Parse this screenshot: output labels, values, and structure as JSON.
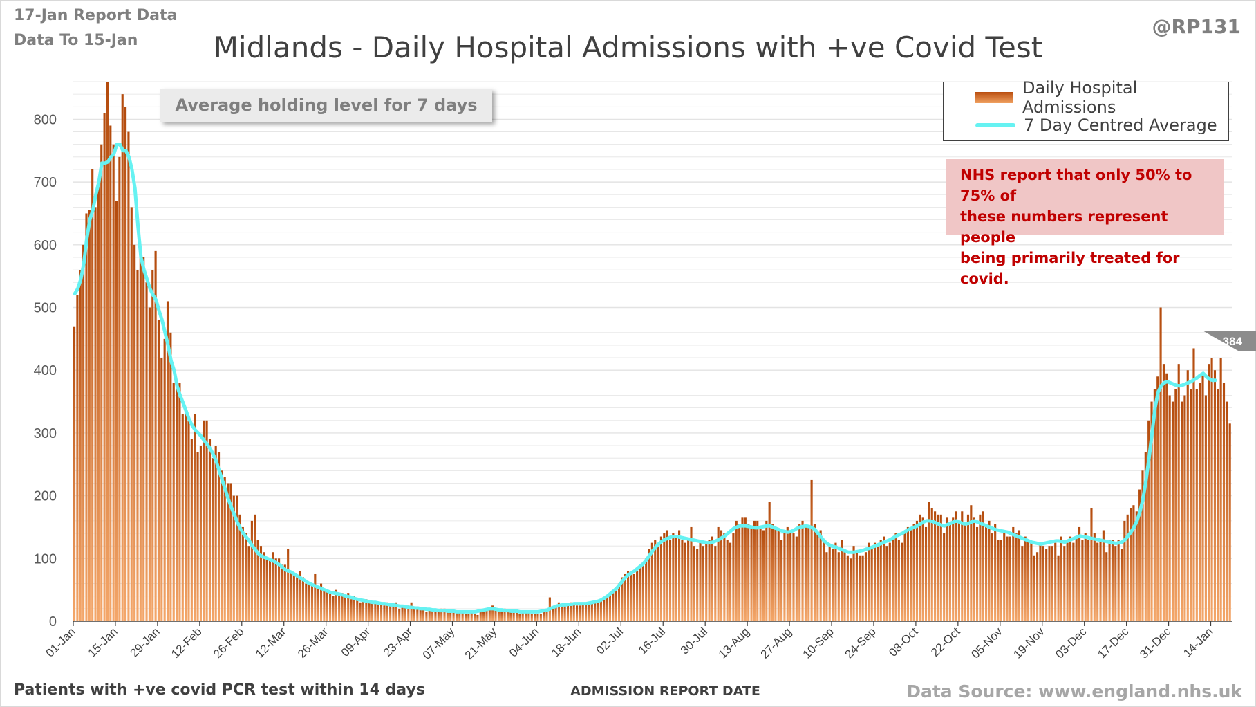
{
  "header": {
    "report_date": "17-Jan Report Data",
    "data_to": "Data To 15-Jan",
    "handle": "@RP131"
  },
  "annotations": {
    "holding": "Average holding level for 7 days",
    "nhs_note": [
      "NHS report that only 50% to 75% of",
      "these numbers represent people",
      "being primarily treated for covid."
    ],
    "callout_value": "384"
  },
  "footer": {
    "left": "Patients with +ve covid PCR test within 14 days",
    "source": "Data Source: www.england.nhs.uk"
  },
  "colors": {
    "bar_dark": "#b34a0c",
    "bar_light": "#f4a76a",
    "avg_line": "#66f2f2",
    "grid": "#e3e3e3",
    "note_bg": "#f0c6c6",
    "note_text": "#c00000"
  },
  "chart_data": {
    "type": "bar",
    "title": "Midlands - Daily Hospital Admissions with +ve Covid Test",
    "xlabel": "ADMISSION REPORT DATE",
    "ylabel": "",
    "ylim": [
      0,
      860
    ],
    "yticks": [
      0,
      100,
      200,
      300,
      400,
      500,
      600,
      700,
      800
    ],
    "grid": true,
    "legend_position": "top-right",
    "x_start": "01-Jan",
    "x_end": "15-Jan",
    "xticks": [
      "01-Jan",
      "15-Jan",
      "29-Jan",
      "12-Feb",
      "26-Feb",
      "12-Mar",
      "26-Mar",
      "09-Apr",
      "23-Apr",
      "07-May",
      "21-May",
      "04-Jun",
      "18-Jun",
      "02-Jul",
      "16-Jul",
      "30-Jul",
      "13-Aug",
      "27-Aug",
      "10-Sep",
      "24-Sep",
      "08-Oct",
      "22-Oct",
      "05-Nov",
      "19-Nov",
      "03-Dec",
      "17-Dec",
      "31-Dec",
      "14-Jan"
    ],
    "series": [
      {
        "name": "Daily Hospital Admissions",
        "values": [
          470,
          520,
          560,
          600,
          650,
          655,
          720,
          660,
          700,
          760,
          810,
          860,
          790,
          760,
          670,
          740,
          840,
          820,
          780,
          660,
          600,
          560,
          590,
          580,
          540,
          500,
          560,
          590,
          480,
          420,
          450,
          510,
          460,
          380,
          370,
          380,
          330,
          340,
          320,
          290,
          330,
          270,
          280,
          320,
          320,
          290,
          260,
          280,
          270,
          240,
          230,
          220,
          220,
          200,
          200,
          170,
          150,
          140,
          120,
          160,
          170,
          130,
          120,
          110,
          100,
          100,
          110,
          100,
          100,
          90,
          90,
          115,
          80,
          75,
          70,
          80,
          70,
          60,
          60,
          60,
          75,
          55,
          60,
          50,
          50,
          45,
          40,
          50,
          45,
          45,
          40,
          45,
          35,
          40,
          35,
          30,
          35,
          35,
          30,
          30,
          30,
          28,
          30,
          25,
          30,
          25,
          25,
          30,
          20,
          22,
          25,
          25,
          30,
          20,
          20,
          18,
          20,
          15,
          18,
          20,
          15,
          15,
          20,
          20,
          18,
          15,
          15,
          15,
          15,
          15,
          12,
          12,
          15,
          12,
          10,
          15,
          15,
          18,
          20,
          25,
          20,
          18,
          15,
          20,
          18,
          15,
          15,
          15,
          12,
          15,
          15,
          15,
          12,
          12,
          12,
          12,
          15,
          20,
          38,
          20,
          25,
          30,
          25,
          25,
          25,
          30,
          28,
          25,
          25,
          30,
          30,
          30,
          28,
          30,
          32,
          35,
          35,
          40,
          45,
          45,
          50,
          60,
          70,
          75,
          80,
          78,
          75,
          80,
          90,
          90,
          100,
          115,
          125,
          130,
          120,
          135,
          140,
          145,
          130,
          140,
          135,
          145,
          130,
          125,
          130,
          150,
          120,
          115,
          125,
          120,
          125,
          130,
          135,
          120,
          150,
          145,
          140,
          130,
          125,
          140,
          160,
          155,
          165,
          165,
          155,
          150,
          160,
          160,
          150,
          145,
          160,
          190,
          155,
          150,
          145,
          130,
          140,
          150,
          145,
          140,
          135,
          155,
          160,
          150,
          150,
          225,
          155,
          140,
          145,
          130,
          110,
          120,
          115,
          125,
          110,
          130,
          115,
          105,
          100,
          120,
          110,
          105,
          105,
          110,
          125,
          115,
          125,
          120,
          130,
          135,
          120,
          125,
          135,
          140,
          130,
          125,
          140,
          150,
          145,
          155,
          160,
          170,
          165,
          150,
          190,
          180,
          175,
          170,
          170,
          140,
          165,
          155,
          165,
          175,
          160,
          175,
          155,
          170,
          185,
          165,
          150,
          170,
          175,
          150,
          160,
          140,
          155,
          130,
          130,
          145,
          135,
          135,
          150,
          140,
          145,
          120,
          135,
          130,
          125,
          105,
          110,
          125,
          120,
          115,
          120,
          120,
          125,
          105,
          135,
          120,
          125,
          135,
          125,
          135,
          150,
          130,
          140,
          130,
          180,
          140,
          125,
          130,
          145,
          110,
          130,
          130,
          120,
          130,
          115,
          160,
          170,
          180,
          185,
          175,
          210,
          240,
          270,
          320,
          350,
          370,
          390,
          500,
          410,
          395,
          360,
          350,
          370,
          410,
          350,
          360,
          400,
          370,
          435,
          370,
          380,
          395,
          360,
          410,
          420,
          400,
          370,
          420,
          380,
          350,
          315
        ]
      },
      {
        "name": "7 Day Centred Average",
        "values": [
          522,
          530,
          545,
          570,
          610,
          640,
          655,
          680,
          700,
          730,
          730,
          732,
          740,
          745,
          760,
          760,
          750,
          750,
          740,
          720,
          690,
          630,
          580,
          560,
          545,
          530,
          520,
          512,
          495,
          480,
          460,
          440,
          415,
          400,
          375,
          360,
          348,
          335,
          322,
          312,
          305,
          300,
          295,
          288,
          282,
          275,
          266,
          255,
          240,
          225,
          210,
          195,
          182,
          170,
          158,
          148,
          140,
          134,
          128,
          120,
          114,
          108,
          104,
          102,
          100,
          98,
          96,
          93,
          90,
          86,
          82,
          80,
          78,
          75,
          72,
          69,
          66,
          63,
          60,
          58,
          56,
          54,
          52,
          50,
          48,
          46,
          45,
          44,
          43,
          42,
          40,
          39,
          38,
          36,
          35,
          34,
          33,
          32,
          31,
          30,
          30,
          29,
          28,
          28,
          27,
          26,
          26,
          25,
          24,
          24,
          23,
          22,
          22,
          21,
          21,
          20,
          20,
          19,
          19,
          18,
          18,
          17,
          17,
          17,
          16,
          16,
          16,
          15,
          15,
          15,
          15,
          15,
          15,
          15,
          16,
          17,
          18,
          19,
          20,
          20,
          19,
          18,
          18,
          17,
          17,
          16,
          16,
          16,
          15,
          15,
          15,
          15,
          15,
          15,
          15,
          16,
          17,
          18,
          20,
          22,
          24,
          25,
          26,
          26,
          27,
          27,
          28,
          28,
          28,
          28,
          28,
          29,
          30,
          31,
          32,
          34,
          37,
          40,
          44,
          48,
          52,
          58,
          64,
          70,
          74,
          77,
          80,
          84,
          88,
          92,
          98,
          105,
          112,
          118,
          123,
          127,
          130,
          132,
          134,
          135,
          135,
          134,
          133,
          132,
          131,
          130,
          129,
          128,
          127,
          126,
          125,
          125,
          126,
          128,
          130,
          133,
          136,
          140,
          144,
          148,
          150,
          152,
          152,
          152,
          151,
          150,
          149,
          149,
          150,
          151,
          152,
          152,
          150,
          148,
          146,
          144,
          143,
          142,
          143,
          145,
          148,
          150,
          151,
          152,
          151,
          149,
          146,
          140,
          134,
          128,
          124,
          121,
          119,
          118,
          116,
          114,
          112,
          110,
          110,
          110,
          111,
          112,
          113,
          115,
          116,
          118,
          120,
          122,
          124,
          126,
          128,
          130,
          133,
          136,
          138,
          140,
          143,
          146,
          148,
          150,
          152,
          155,
          158,
          160,
          160,
          159,
          157,
          155,
          153,
          152,
          154,
          156,
          158,
          160,
          158,
          156,
          155,
          156,
          158,
          160,
          158,
          156,
          154,
          152,
          150,
          148,
          146,
          145,
          144,
          143,
          142,
          140,
          138,
          136,
          134,
          132,
          130,
          128,
          126,
          125,
          124,
          123,
          124,
          125,
          126,
          127,
          128,
          128,
          127,
          126,
          128,
          130,
          132,
          134,
          136,
          135,
          134,
          133,
          132,
          131,
          130,
          129,
          128,
          127,
          126,
          125,
          124,
          125,
          126,
          130,
          136,
          142,
          150,
          160,
          175,
          195,
          225,
          260,
          300,
          340,
          365,
          375,
          380,
          382,
          380,
          378,
          376,
          375,
          376,
          378,
          380,
          382,
          385,
          388,
          392,
          395,
          390,
          386,
          384,
          384
        ]
      }
    ]
  }
}
